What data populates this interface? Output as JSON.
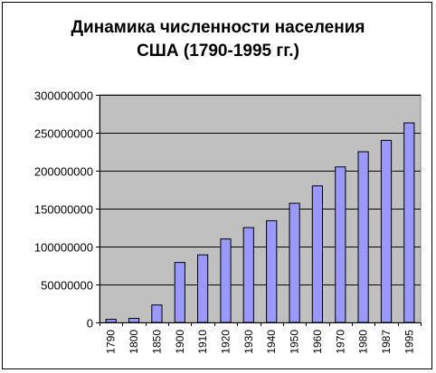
{
  "chart_data": {
    "type": "bar",
    "title_line1": "Динамика численности населения",
    "title_line2": "США (1790-1995 гг.)",
    "xlabel": "",
    "ylabel": "",
    "categories": [
      "1790",
      "1800",
      "1850",
      "1900",
      "1910",
      "1920",
      "1930",
      "1940",
      "1950",
      "1960",
      "1970",
      "1980",
      "1987",
      "1995"
    ],
    "values": [
      4000000,
      5300000,
      23000000,
      79000000,
      89000000,
      110000000,
      125000000,
      134000000,
      157000000,
      180000000,
      205000000,
      225000000,
      240000000,
      263000000
    ],
    "ylim": [
      0,
      300000000
    ],
    "yticks": [
      "0",
      "50000000",
      "100000000",
      "150000000",
      "200000000",
      "250000000",
      "300000000"
    ],
    "grid": true,
    "colors": {
      "bar_fill": "#9999ff",
      "bar_stroke": "#000000",
      "plot_background": "#c0c0c0",
      "gridline": "#000000"
    }
  }
}
